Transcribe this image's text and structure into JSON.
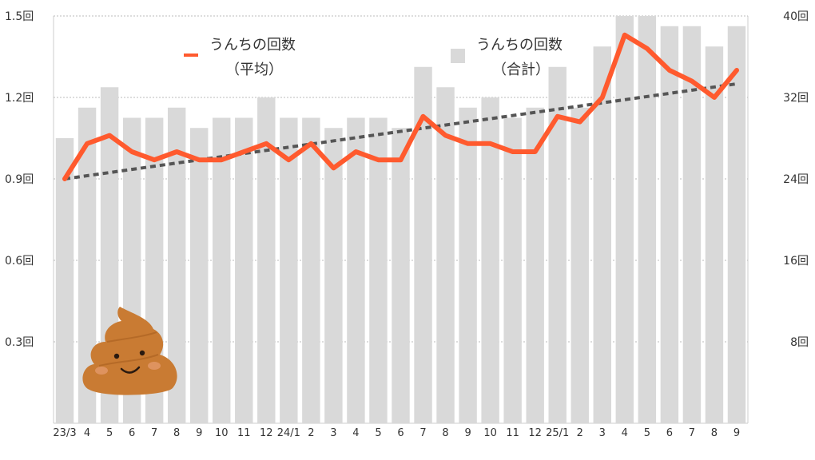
{
  "chart_data": {
    "type": "bar",
    "categories": [
      "23/3",
      "4",
      "5",
      "6",
      "7",
      "8",
      "9",
      "10",
      "11",
      "12",
      "24/1",
      "2",
      "3",
      "4",
      "5",
      "6",
      "7",
      "8",
      "9",
      "10",
      "11",
      "12",
      "25/1",
      "2",
      "3",
      "4",
      "5",
      "6",
      "7",
      "8",
      "9"
    ],
    "series": [
      {
        "name_lines": [
          "うんちの回数",
          "（合計）"
        ],
        "type": "bar",
        "axis": "right",
        "color": "#d9d9d9",
        "values": [
          28,
          31,
          33,
          30,
          30,
          31,
          29,
          30,
          30,
          32,
          30,
          30,
          29,
          30,
          30,
          29,
          35,
          33,
          31,
          32,
          30,
          31,
          35,
          31,
          37,
          40,
          40,
          39,
          39,
          37,
          39
        ]
      },
      {
        "name_lines": [
          "うんちの回数",
          "（平均）"
        ],
        "type": "line",
        "axis": "left",
        "color": "#ff5a2e",
        "values": [
          0.9,
          1.03,
          1.06,
          1.0,
          0.97,
          1.0,
          0.97,
          0.97,
          1.0,
          1.03,
          0.97,
          1.03,
          0.94,
          1.0,
          0.97,
          0.97,
          1.13,
          1.06,
          1.03,
          1.03,
          1.0,
          1.0,
          1.13,
          1.11,
          1.2,
          1.43,
          1.38,
          1.3,
          1.26,
          1.2,
          1.3
        ]
      }
    ],
    "trendline": {
      "style": "dotted",
      "color": "#555555",
      "start": 0.9,
      "end": 1.25
    },
    "left_axis": {
      "ylim": [
        0,
        1.5
      ],
      "ticks": [
        "0.3回",
        "0.6回",
        "0.9回",
        "1.2回",
        "1.5回"
      ],
      "tick_values": [
        0.3,
        0.6,
        0.9,
        1.2,
        1.5
      ]
    },
    "right_axis": {
      "ylim": [
        0,
        40
      ],
      "ticks": [
        "8回",
        "16回",
        "24回",
        "32回",
        "40回"
      ],
      "tick_values": [
        8,
        16,
        24,
        32,
        40
      ]
    },
    "grid": true,
    "legend": "top"
  },
  "illustration": {
    "icon": "poop-icon",
    "color": "#c97b33"
  }
}
